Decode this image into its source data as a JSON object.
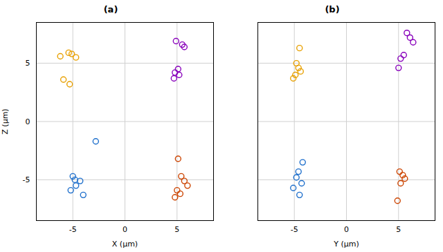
{
  "chart_data": [
    {
      "type": "scatter",
      "title": "(a)",
      "x_label": "X (μm)",
      "y_label": "Z (μm)",
      "xlim": [
        -8.5,
        8.5
      ],
      "ylim": [
        -8.5,
        8.5
      ],
      "xticks": [
        -5,
        0,
        5
      ],
      "yticks": [
        -5,
        0,
        5
      ],
      "grid": true,
      "marker": "circle",
      "series": [
        {
          "color": "#E8A000",
          "x": [
            -6.2,
            -5.4,
            -5.1,
            -4.7,
            -5.9,
            -5.3
          ],
          "values": [
            5.6,
            5.9,
            5.8,
            5.5,
            3.6,
            3.2
          ]
        },
        {
          "color": "#8800BB",
          "x": [
            4.9,
            5.5,
            5.7,
            5.1,
            4.8,
            5.2,
            4.7
          ],
          "values": [
            6.9,
            6.6,
            6.4,
            4.5,
            4.2,
            4.0,
            3.7
          ]
        },
        {
          "color": "#1E6FCC",
          "x": [
            -2.8,
            -5.0,
            -4.8,
            -4.3,
            -4.7,
            -5.2,
            -4.0
          ],
          "values": [
            -1.7,
            -4.7,
            -5.0,
            -5.1,
            -5.5,
            -5.9,
            -6.3
          ]
        },
        {
          "color": "#CC4400",
          "x": [
            5.1,
            5.4,
            5.7,
            6.0,
            5.0,
            5.3,
            4.8
          ],
          "values": [
            -3.2,
            -4.7,
            -5.1,
            -5.5,
            -5.9,
            -6.2,
            -6.5
          ]
        }
      ]
    },
    {
      "type": "scatter",
      "title": "(b)",
      "x_label": "Y (μm)",
      "xlim": [
        -8.5,
        8.5
      ],
      "ylim": [
        -8.5,
        8.5
      ],
      "xticks": [
        -5,
        0,
        5
      ],
      "yticks": [
        -5,
        0,
        5
      ],
      "grid": true,
      "marker": "circle",
      "tick_labels": "x",
      "series": [
        {
          "color": "#E8A000",
          "x": [
            -4.5,
            -4.8,
            -4.6,
            -4.4,
            -4.9,
            -5.1
          ],
          "values": [
            6.3,
            5.0,
            4.6,
            4.3,
            4.0,
            3.7
          ]
        },
        {
          "color": "#8800BB",
          "x": [
            5.8,
            6.1,
            6.4,
            5.5,
            5.2,
            5.0
          ],
          "values": [
            7.6,
            7.2,
            6.8,
            5.7,
            5.4,
            4.6
          ]
        },
        {
          "color": "#1E6FCC",
          "x": [
            -4.2,
            -4.6,
            -4.8,
            -4.3,
            -5.1,
            -4.5
          ],
          "values": [
            -3.5,
            -4.3,
            -4.8,
            -5.3,
            -5.7,
            -6.3
          ]
        },
        {
          "color": "#CC4400",
          "x": [
            5.1,
            5.4,
            5.6,
            5.2,
            4.9
          ],
          "values": [
            -4.3,
            -4.6,
            -4.9,
            -5.3,
            -6.8
          ]
        }
      ]
    }
  ]
}
